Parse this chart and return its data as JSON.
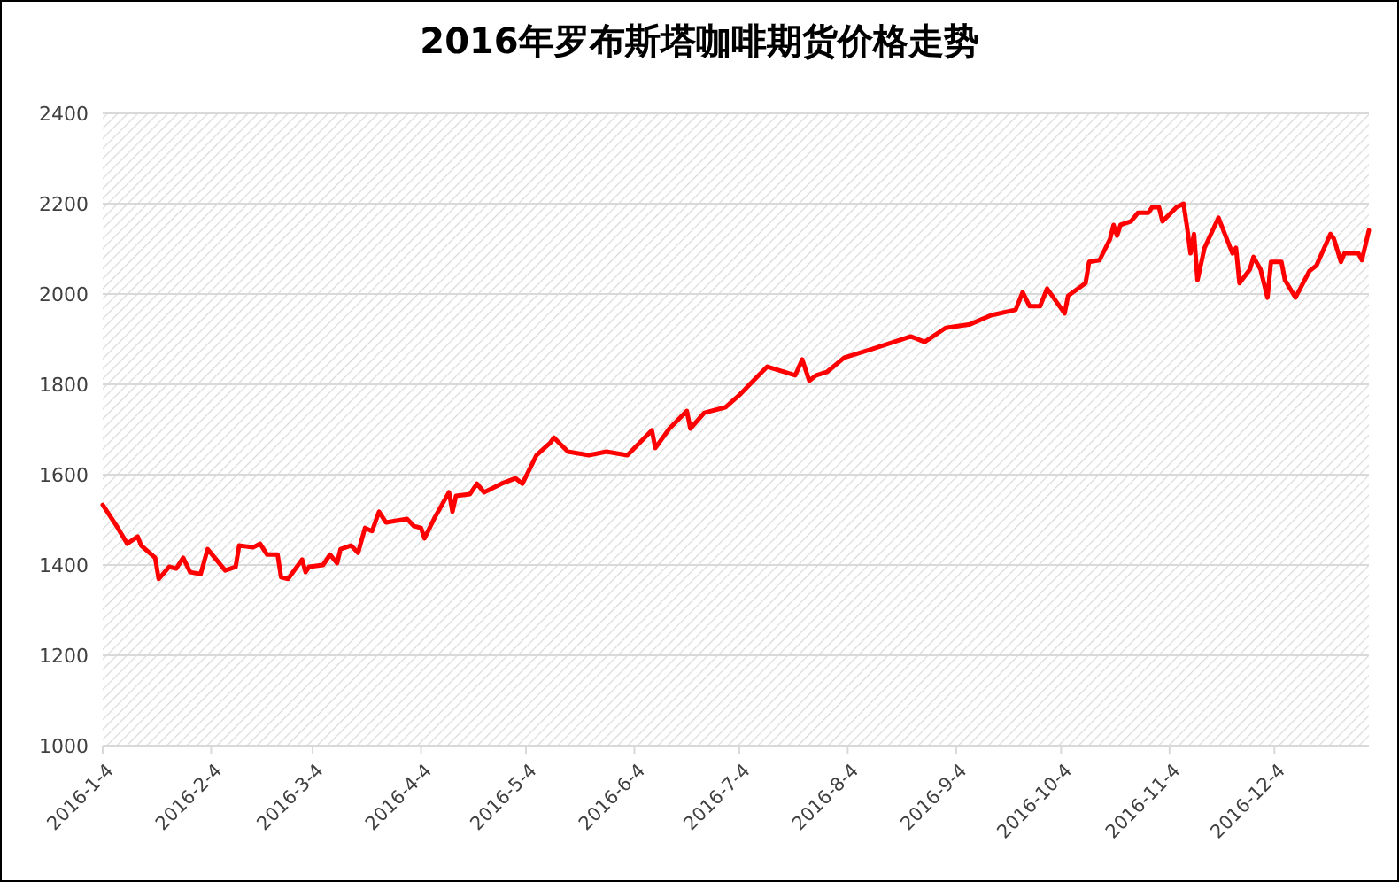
{
  "chart_data": {
    "type": "line",
    "title": "2016年罗布斯塔咖啡期货价格走势",
    "x": [
      "2016-01-04",
      "2016-01-08",
      "2016-01-11",
      "2016-01-14",
      "2016-01-15",
      "2016-01-19",
      "2016-01-20",
      "2016-01-23",
      "2016-01-25",
      "2016-01-27",
      "2016-01-29",
      "2016-02-01",
      "2016-02-03",
      "2016-02-08",
      "2016-02-11",
      "2016-02-12",
      "2016-02-16",
      "2016-02-18",
      "2016-02-20",
      "2016-02-23",
      "2016-02-24",
      "2016-02-26",
      "2016-03-01",
      "2016-03-02",
      "2016-03-03",
      "2016-03-07",
      "2016-03-09",
      "2016-03-11",
      "2016-03-12",
      "2016-03-15",
      "2016-03-17",
      "2016-03-19",
      "2016-03-21",
      "2016-03-23",
      "2016-03-25",
      "2016-03-31",
      "2016-04-02",
      "2016-04-04",
      "2016-04-05",
      "2016-04-08",
      "2016-04-12",
      "2016-04-13",
      "2016-04-14",
      "2016-04-18",
      "2016-04-20",
      "2016-04-22",
      "2016-04-27",
      "2016-05-01",
      "2016-05-03",
      "2016-05-07",
      "2016-05-11",
      "2016-05-12",
      "2016-05-16",
      "2016-05-22",
      "2016-05-27",
      "2016-06-02",
      "2016-06-09",
      "2016-06-10",
      "2016-06-14",
      "2016-06-19",
      "2016-06-20",
      "2016-06-24",
      "2016-06-30",
      "2016-07-04",
      "2016-07-07",
      "2016-07-12",
      "2016-07-20",
      "2016-07-22",
      "2016-07-24",
      "2016-07-26",
      "2016-07-29",
      "2016-08-03",
      "2016-08-11",
      "2016-08-22",
      "2016-08-26",
      "2016-09-01",
      "2016-09-08",
      "2016-09-14",
      "2016-09-21",
      "2016-09-23",
      "2016-09-25",
      "2016-09-28",
      "2016-09-30",
      "2016-10-05",
      "2016-10-06",
      "2016-10-11",
      "2016-10-12",
      "2016-10-15",
      "2016-10-18",
      "2016-10-19",
      "2016-10-20",
      "2016-10-21",
      "2016-10-24",
      "2016-10-26",
      "2016-10-29",
      "2016-10-30",
      "2016-11-01",
      "2016-11-02",
      "2016-11-06",
      "2016-11-08",
      "2016-11-09",
      "2016-11-10",
      "2016-11-11",
      "2016-11-12",
      "2016-11-14",
      "2016-11-18",
      "2016-11-20",
      "2016-11-22",
      "2016-11-23",
      "2016-11-24",
      "2016-11-27",
      "2016-11-28",
      "2016-11-30",
      "2016-12-02",
      "2016-12-03",
      "2016-12-06",
      "2016-12-07",
      "2016-12-10",
      "2016-12-14",
      "2016-12-16",
      "2016-12-20",
      "2016-12-21",
      "2016-12-23",
      "2016-12-24",
      "2016-12-28",
      "2016-12-29",
      "2016-12-31"
    ],
    "series": [
      {
        "color": "#ff0000",
        "values": [
          1533,
          1486,
          1447,
          1463,
          1443,
          1416,
          1369,
          1396,
          1392,
          1416,
          1384,
          1380,
          1435,
          1388,
          1396,
          1443,
          1439,
          1447,
          1423,
          1423,
          1373,
          1369,
          1412,
          1384,
          1396,
          1400,
          1423,
          1404,
          1435,
          1443,
          1427,
          1482,
          1475,
          1518,
          1494,
          1502,
          1486,
          1482,
          1459,
          1506,
          1561,
          1518,
          1553,
          1557,
          1580,
          1561,
          1580,
          1592,
          1580,
          1643,
          1671,
          1682,
          1651,
          1643,
          1651,
          1643,
          1698,
          1659,
          1702,
          1741,
          1702,
          1737,
          1749,
          1776,
          1800,
          1839,
          1820,
          1855,
          1808,
          1820,
          1827,
          1859,
          1878,
          1906,
          1894,
          1925,
          1933,
          1953,
          1965,
          2004,
          1973,
          1973,
          2012,
          1957,
          1996,
          2024,
          2071,
          2075,
          2122,
          2153,
          2129,
          2153,
          2161,
          2180,
          2180,
          2192,
          2192,
          2161,
          2192,
          2200,
          2149,
          2090,
          2133,
          2031,
          2102,
          2169,
          2129,
          2090,
          2102,
          2024,
          2055,
          2082,
          2055,
          1992,
          2071,
          2071,
          2031,
          1992,
          2051,
          2063,
          2133,
          2122,
          2071,
          2090,
          2090,
          2075,
          2141
        ]
      }
    ],
    "xlim": [
      "2016-01-04",
      "2016-12-31"
    ],
    "xticks": [
      {
        "value": "2016-01-04",
        "label": "2016-1-4"
      },
      {
        "value": "2016-02-04",
        "label": "2016-2-4"
      },
      {
        "value": "2016-03-04",
        "label": "2016-3-4"
      },
      {
        "value": "2016-04-04",
        "label": "2016-4-4"
      },
      {
        "value": "2016-05-04",
        "label": "2016-5-4"
      },
      {
        "value": "2016-06-04",
        "label": "2016-6-4"
      },
      {
        "value": "2016-07-04",
        "label": "2016-7-4"
      },
      {
        "value": "2016-08-04",
        "label": "2016-8-4"
      },
      {
        "value": "2016-09-04",
        "label": "2016-9-4"
      },
      {
        "value": "2016-10-04",
        "label": "2016-10-4"
      },
      {
        "value": "2016-11-04",
        "label": "2016-11-4"
      },
      {
        "value": "2016-12-04",
        "label": "2016-12-4"
      }
    ],
    "ylim": [
      1000,
      2400
    ],
    "yticks": [
      1000,
      1200,
      1400,
      1600,
      1800,
      2000,
      2200,
      2400
    ],
    "grid": "y",
    "marker": "none",
    "line_style": "solid"
  }
}
